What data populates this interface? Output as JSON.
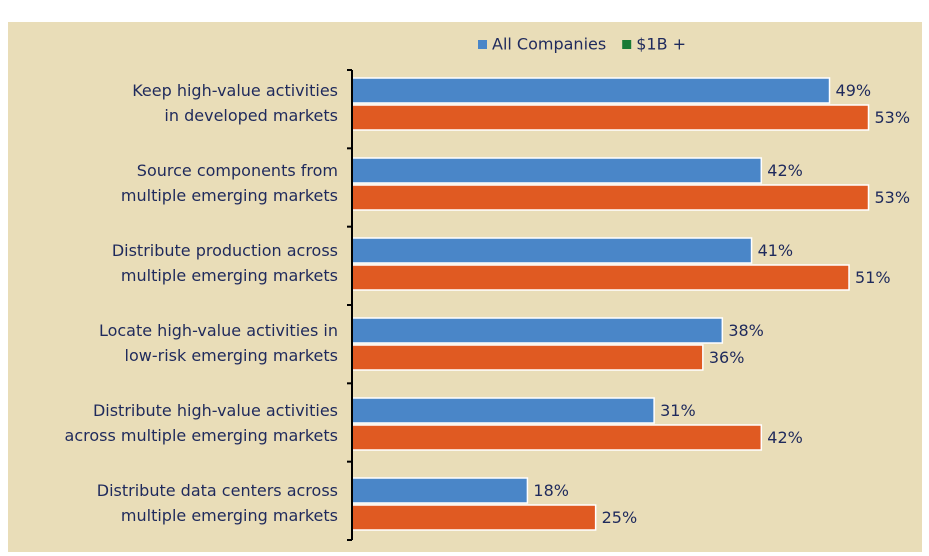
{
  "chart_data": {
    "type": "hbar",
    "categories": [
      [
        "Keep high-value activities",
        "in developed markets"
      ],
      [
        "Source components from",
        "multiple emerging markets"
      ],
      [
        "Distribute production across",
        "multiple emerging markets"
      ],
      [
        "Locate high-value activities in",
        "low-risk emerging markets"
      ],
      [
        "Distribute high-value activities",
        "across multiple emerging markets"
      ],
      [
        "Distribute data centers across",
        "multiple emerging markets"
      ]
    ],
    "series": [
      {
        "name": "All Companies",
        "color": "#4a86c8",
        "legend_color": "#4a86c8",
        "values": [
          49,
          42,
          41,
          38,
          31,
          18
        ],
        "value_labels": [
          "49%",
          "42%",
          "41%",
          "38%",
          "31%",
          "18%"
        ]
      },
      {
        "name": "$1B +",
        "color": "#e05a22",
        "legend_color": "#1a7a36",
        "values": [
          53,
          53,
          51,
          36,
          42,
          25
        ],
        "value_labels": [
          "53%",
          "53%",
          "51%",
          "36%",
          "42%",
          "25%"
        ]
      }
    ],
    "xlim": [
      0,
      55
    ],
    "legend": "top"
  }
}
